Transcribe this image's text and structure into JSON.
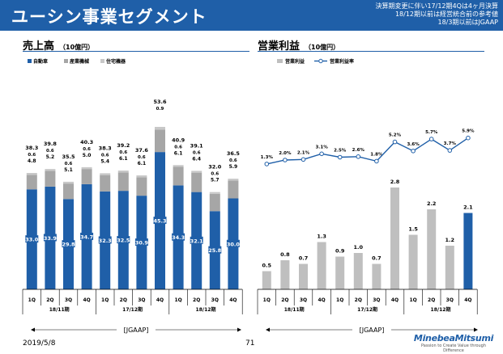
{
  "header": {
    "title": "ユーシン事業セグメント",
    "notes": [
      "決算期変更に伴い17/12期4Qは4ヶ月決算",
      "18/12期以前は経営統合前の参考値",
      "18/3期以前はJGAAP"
    ]
  },
  "colors": {
    "header_bg": "#1f5fa8",
    "automotive": "#1f5fa8",
    "industrial": "#a6a6a6",
    "housing": "#c8c8c8",
    "op_income_bar": "#bfbfbf",
    "op_income_highlight": "#1f5fa8",
    "margin_line": "#1f5fa8"
  },
  "footer": {
    "date": "2019/5/8",
    "page": "71",
    "brand": "MinebeaMitsumi",
    "tagline": "Passion to Create Value through Difference"
  },
  "chart_data": [
    {
      "type": "bar",
      "stacked": true,
      "title": "売上高",
      "unit": "（10億円）",
      "legend": [
        "自動車",
        "産業機械",
        "住宅機器"
      ],
      "legend_position": "top-left",
      "categories": [
        "1Q",
        "2Q",
        "3Q",
        "4Q",
        "1Q",
        "2Q",
        "3Q",
        "4Q",
        "1Q",
        "2Q",
        "3Q",
        "4Q"
      ],
      "groups": [
        {
          "label": "18/11期",
          "start": 0,
          "end": 3
        },
        {
          "label": "17/12期",
          "start": 4,
          "end": 7
        },
        {
          "label": "18/12期",
          "start": 8,
          "end": 11
        }
      ],
      "series": [
        {
          "name": "自動車",
          "values": [
            33.0,
            33.9,
            29.8,
            34.7,
            32.3,
            32.5,
            30.9,
            45.3,
            34.3,
            32.1,
            25.8,
            30.0
          ]
        },
        {
          "name": "産業機械",
          "values": [
            4.8,
            5.2,
            5.1,
            5.0,
            5.4,
            6.1,
            6.1,
            7.4,
            6.1,
            6.4,
            5.7,
            5.9
          ]
        },
        {
          "name": "住宅機器",
          "values": [
            0.6,
            0.6,
            0.6,
            0.6,
            0.6,
            0.6,
            0.6,
            0.9,
            0.6,
            0.6,
            0.6,
            0.6
          ]
        }
      ],
      "totals": [
        38.3,
        39.8,
        35.5,
        40.3,
        38.3,
        39.2,
        37.6,
        53.6,
        40.9,
        39.1,
        32.0,
        36.5
      ],
      "ylim": [
        0,
        60
      ],
      "footnote": "[JGAAP]"
    },
    {
      "type": "bar+line",
      "title": "営業利益",
      "unit": "（10億円）",
      "legend": [
        "営業利益",
        "営業利益率"
      ],
      "legend_position": "top-left",
      "categories": [
        "1Q",
        "2Q",
        "3Q",
        "4Q",
        "1Q",
        "2Q",
        "3Q",
        "4Q",
        "1Q",
        "2Q",
        "3Q",
        "4Q"
      ],
      "groups": [
        {
          "label": "18/11期",
          "start": 0,
          "end": 3
        },
        {
          "label": "17/12期",
          "start": 4,
          "end": 7
        },
        {
          "label": "18/12期",
          "start": 8,
          "end": 11
        }
      ],
      "op_income": [
        0.5,
        0.8,
        0.7,
        1.3,
        0.9,
        1.0,
        0.7,
        2.8,
        1.5,
        2.2,
        1.2,
        2.1
      ],
      "op_margin": [
        1.3,
        2.0,
        2.1,
        3.1,
        2.5,
        2.6,
        1.8,
        5.2,
        3.6,
        5.7,
        3.7,
        5.9
      ],
      "highlight_index": 11,
      "footnote": "[JGAAP]"
    }
  ]
}
